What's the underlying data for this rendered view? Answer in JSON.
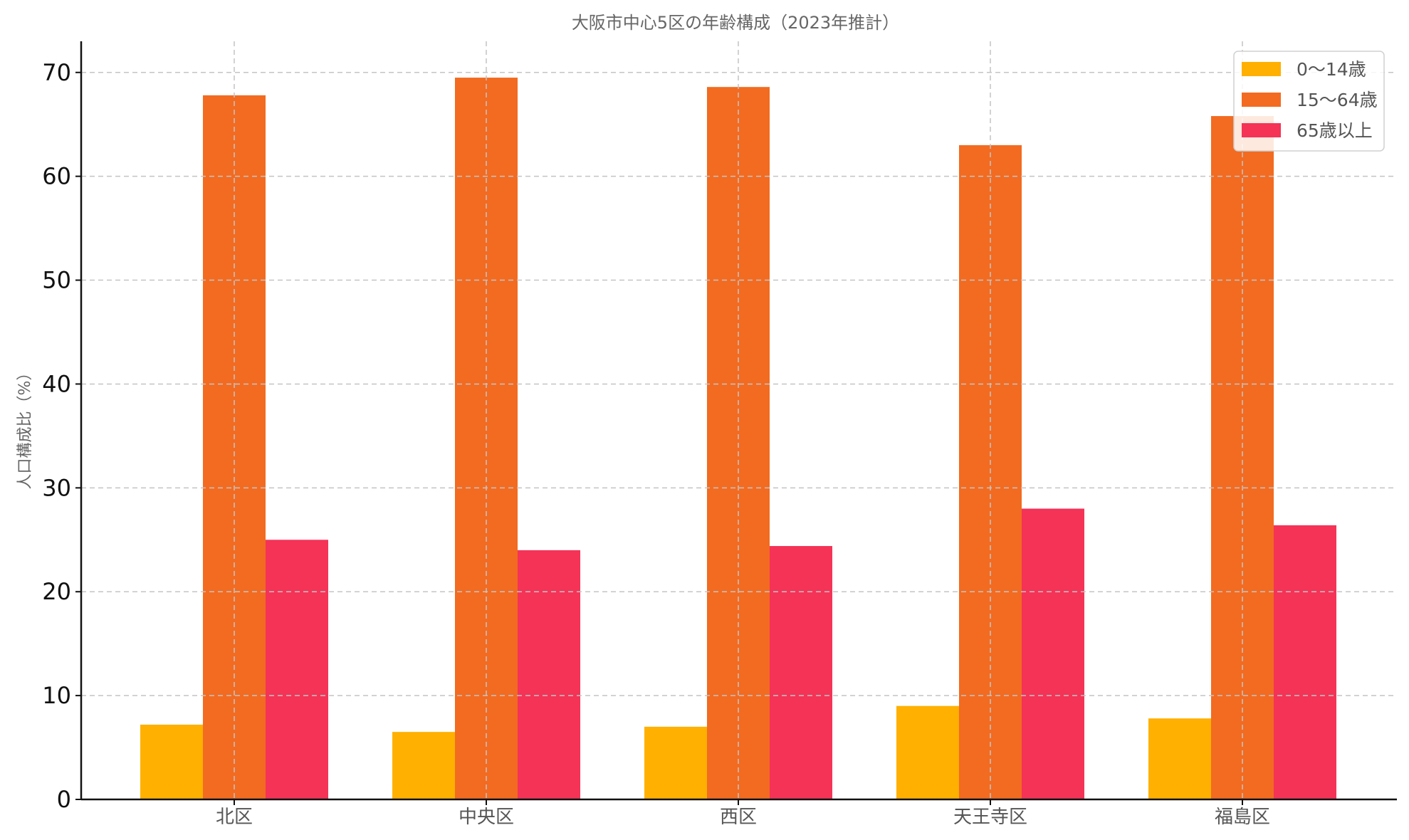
{
  "chart_data": {
    "type": "bar",
    "title": "大阪市中心5区の年齢構成（2023年推計）",
    "xlabel": "",
    "ylabel": "人口構成比（%）",
    "categories": [
      "北区",
      "中央区",
      "西区",
      "天王寺区",
      "福島区"
    ],
    "series": [
      {
        "name": "0〜14歳",
        "color": "#FFB000",
        "values": [
          7.2,
          6.5,
          7.0,
          9.0,
          7.8
        ]
      },
      {
        "name": "15〜64歳",
        "color": "#F26B21",
        "values": [
          67.8,
          69.5,
          68.6,
          63.0,
          65.8
        ]
      },
      {
        "name": "65歳以上",
        "color": "#F43357",
        "values": [
          25.0,
          24.0,
          24.4,
          28.0,
          26.4
        ]
      }
    ],
    "ylim": [
      0,
      73
    ],
    "yticks": [
      0,
      10,
      20,
      30,
      40,
      50,
      60,
      70
    ],
    "grid": true,
    "legend_position": "top-right"
  }
}
